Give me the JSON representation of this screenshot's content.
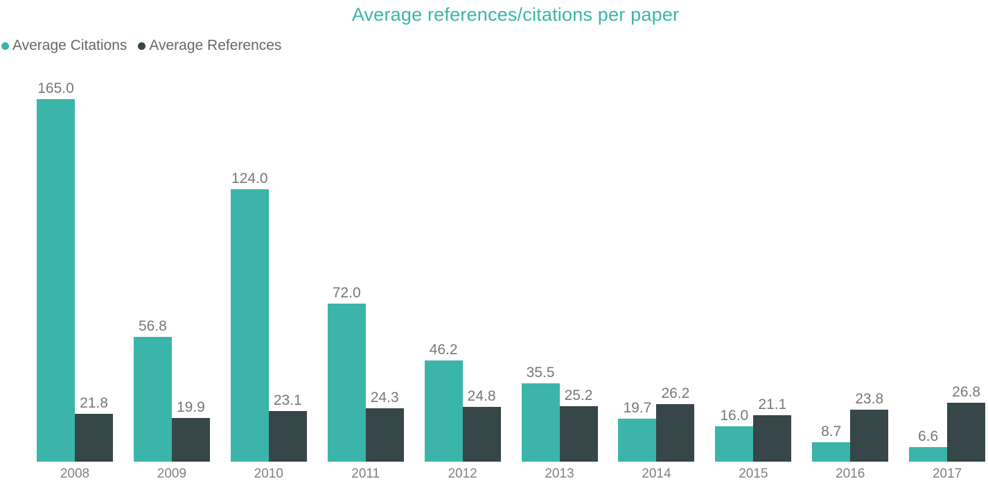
{
  "title": "Average references/citations per paper",
  "chart_data": {
    "type": "bar",
    "title": "Average references/citations per paper",
    "title_color": "#3BB5A9",
    "categories": [
      "2008",
      "2009",
      "2010",
      "2011",
      "2012",
      "2013",
      "2014",
      "2015",
      "2016",
      "2017"
    ],
    "series": [
      {
        "name": "Average Citations",
        "color": "#3BB5A9",
        "values": [
          165.0,
          56.8,
          124.0,
          72.0,
          46.2,
          35.5,
          19.7,
          16.0,
          8.7,
          6.6
        ],
        "labels": [
          "165.0",
          "56.8",
          "124.0",
          "72.0",
          "46.2",
          "35.5",
          "19.7",
          "16.0",
          "8.7",
          "6.6"
        ]
      },
      {
        "name": "Average References",
        "color": "#374649",
        "values": [
          21.8,
          19.9,
          23.1,
          24.3,
          24.8,
          25.2,
          26.2,
          21.1,
          23.8,
          26.8
        ],
        "labels": [
          "21.8",
          "19.9",
          "23.1",
          "24.3",
          "24.8",
          "25.2",
          "26.2",
          "21.1",
          "23.8",
          "26.8"
        ]
      }
    ],
    "ylim": [
      0,
      165
    ],
    "grid": false,
    "y_axis_visible": false,
    "legend_position": "top-left",
    "data_label_color": "#777777",
    "axis_label_color": "#808080",
    "data_labels_visible": true
  }
}
